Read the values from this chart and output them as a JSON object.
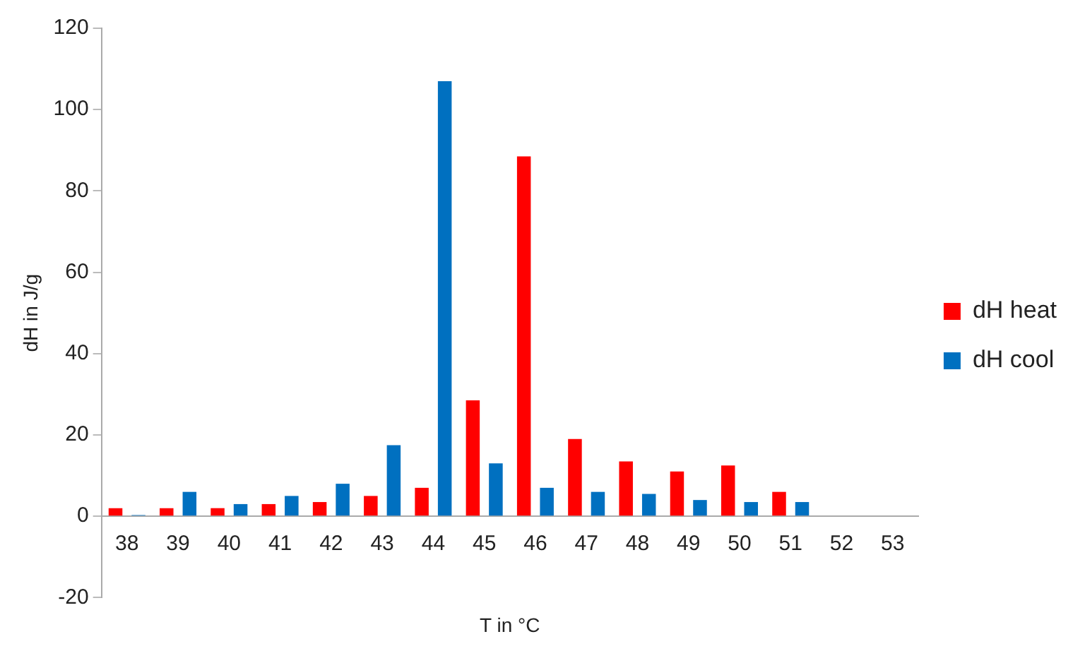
{
  "chart_data": {
    "type": "bar",
    "xlabel": "T in °C",
    "ylabel": "dH in J/g",
    "categories": [
      "38",
      "39",
      "40",
      "41",
      "42",
      "43",
      "44",
      "45",
      "46",
      "47",
      "48",
      "49",
      "50",
      "51",
      "52",
      "53"
    ],
    "series": [
      {
        "name": "dH heat",
        "color": "#ff0000",
        "values": [
          2,
          2,
          2,
          3,
          3.5,
          5,
          7,
          28.5,
          88.5,
          19,
          13.5,
          11,
          12.5,
          6,
          null,
          null
        ]
      },
      {
        "name": "dH cool",
        "color": "#0070c0",
        "values": [
          0.3,
          6,
          3,
          5,
          8,
          17.5,
          107,
          13,
          7,
          6,
          5.5,
          4,
          3.5,
          3.5,
          null,
          null
        ]
      }
    ],
    "ylim": [
      -20,
      120
    ],
    "yticks": [
      -20,
      0,
      20,
      40,
      60,
      80,
      100,
      120
    ],
    "grid": false,
    "legend": "right"
  }
}
